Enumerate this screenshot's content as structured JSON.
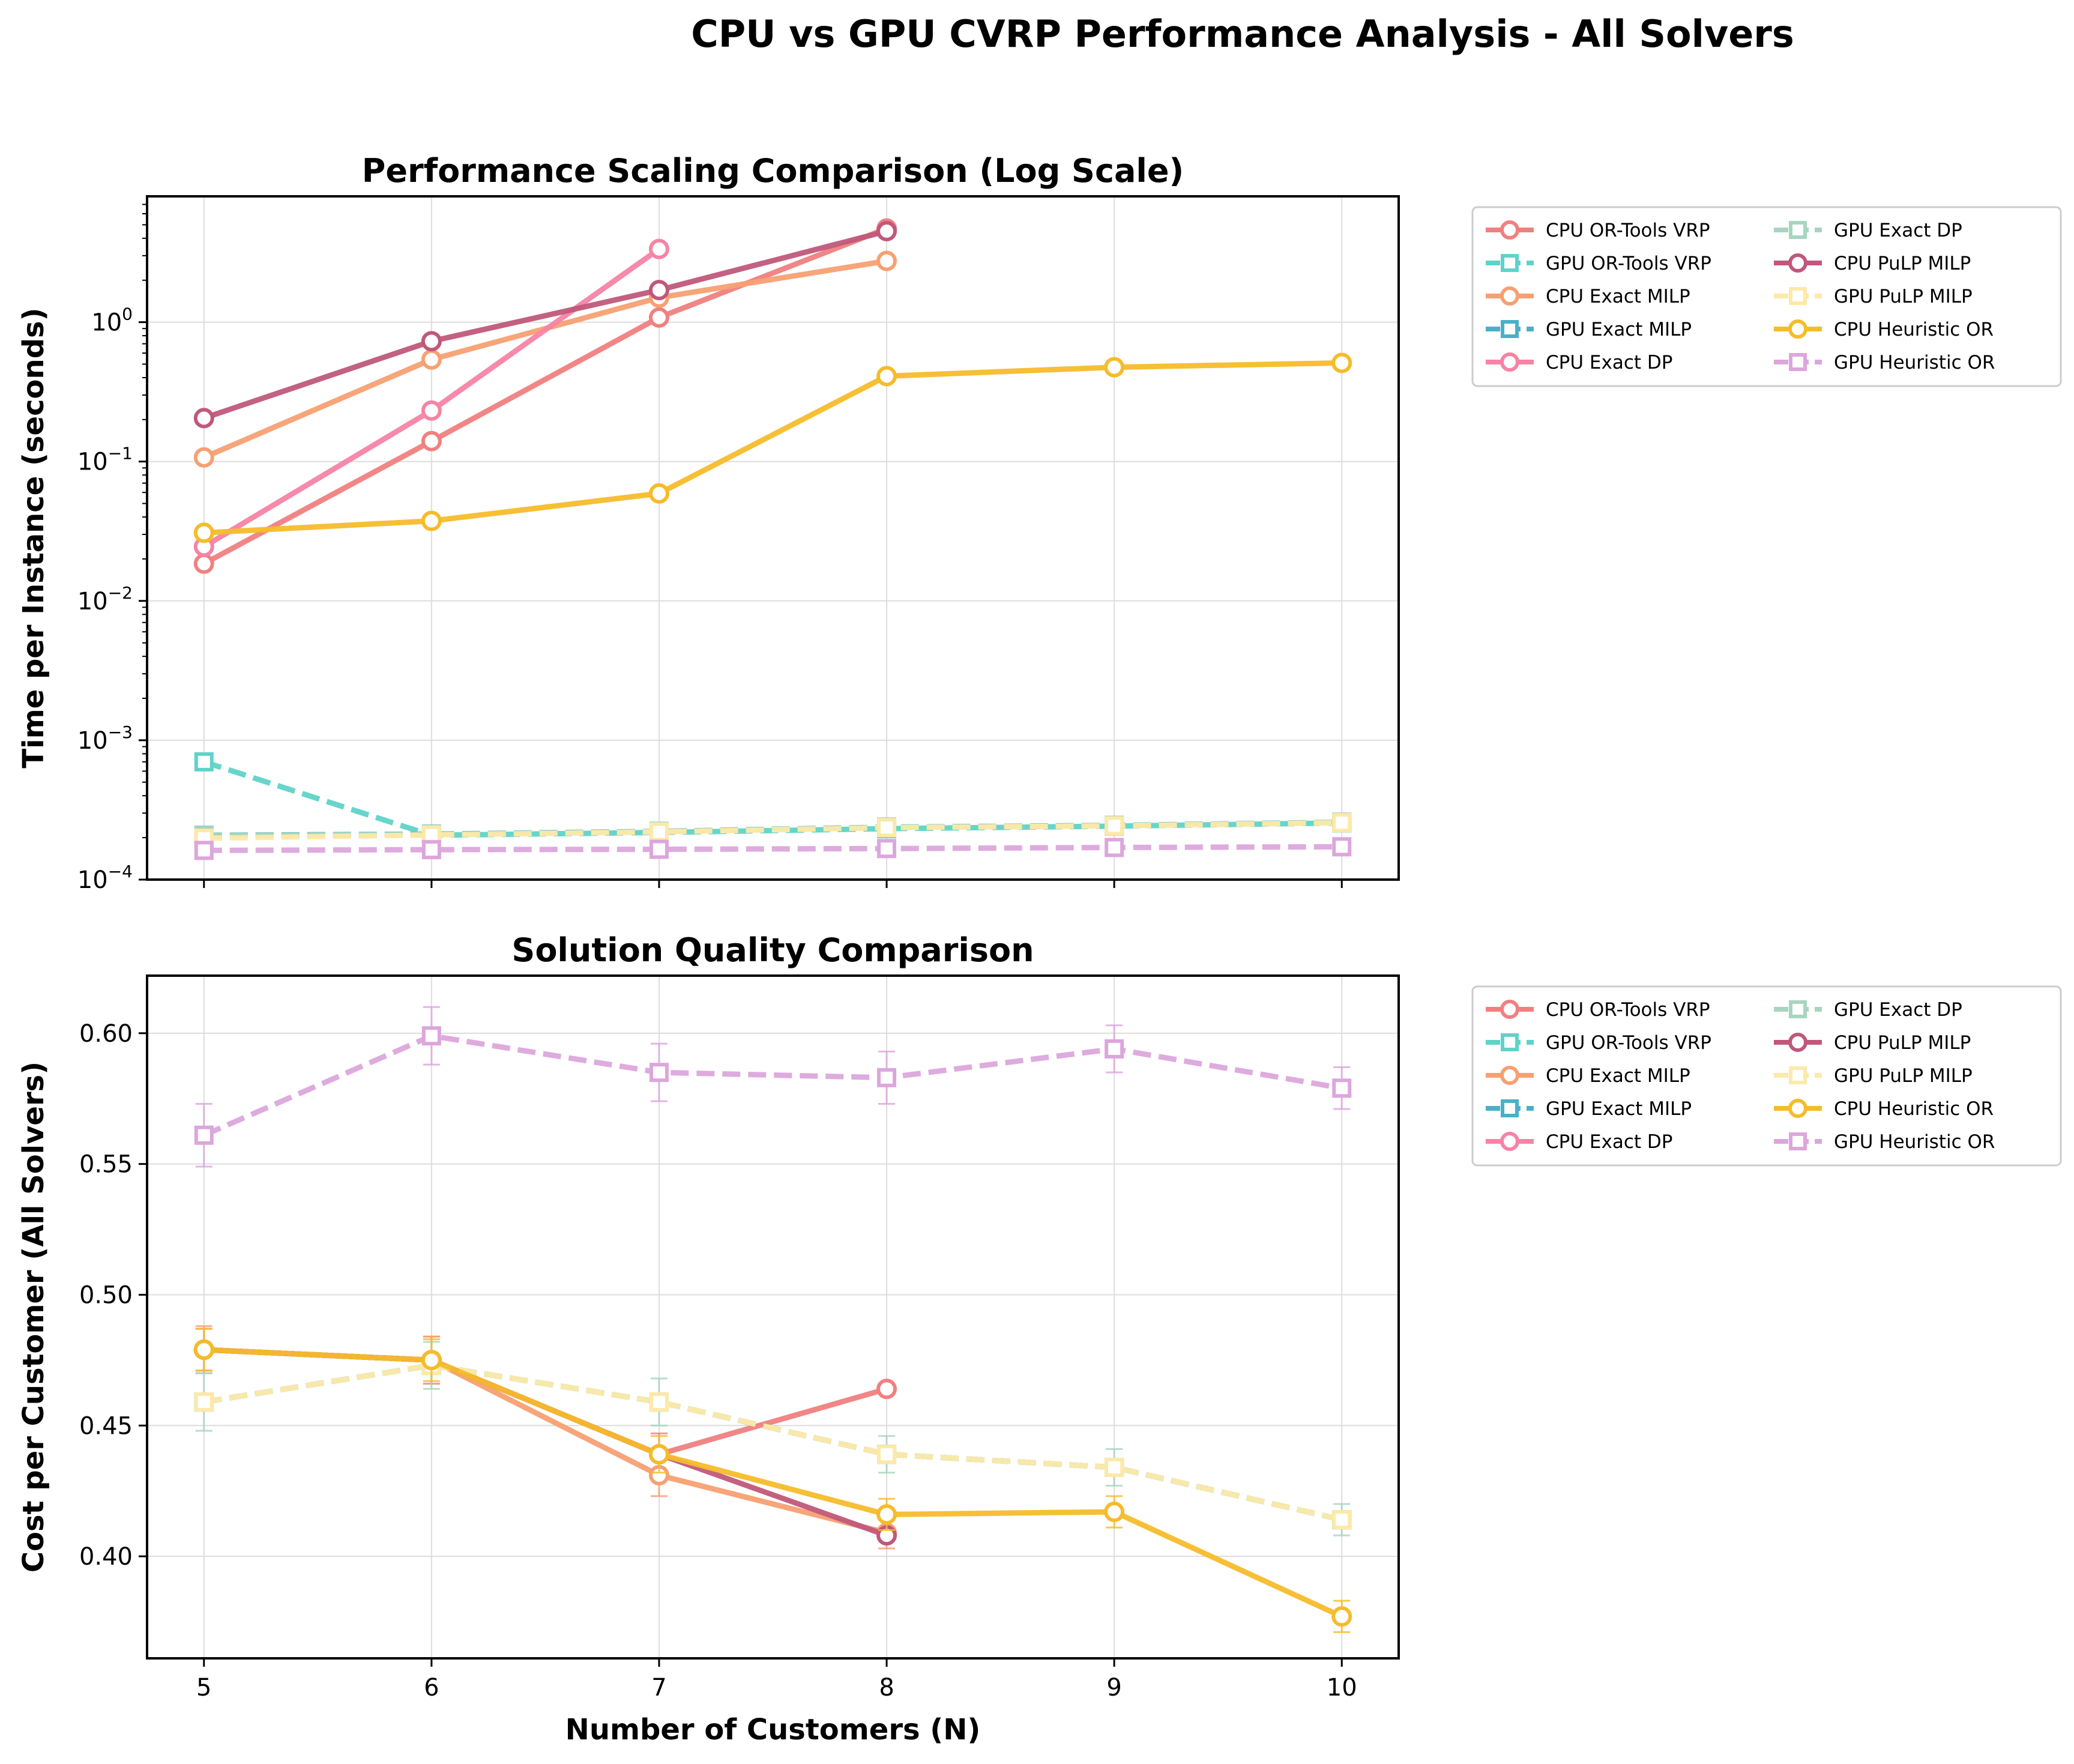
{
  "suptitle": "CPU vs GPU CVRP Performance Analysis - All Solvers",
  "x_label": "Number of Customers (N)",
  "x_ticks": [
    5,
    6,
    7,
    8,
    9,
    10
  ],
  "solvers": [
    {
      "name": "CPU OR-Tools VRP",
      "color": "#f08080",
      "style": "solid",
      "marker": "circle"
    },
    {
      "name": "GPU OR-Tools VRP",
      "color": "#5fd3c8",
      "style": "dashed",
      "marker": "square"
    },
    {
      "name": "CPU Exact MILP",
      "color": "#f7a072",
      "style": "solid",
      "marker": "circle"
    },
    {
      "name": "GPU Exact MILP",
      "color": "#4ab0c9",
      "style": "dashed",
      "marker": "square"
    },
    {
      "name": "CPU Exact DP",
      "color": "#f783a5",
      "style": "solid",
      "marker": "circle"
    },
    {
      "name": "GPU Exact DP",
      "color": "#a8d5bf",
      "style": "dashed",
      "marker": "square"
    },
    {
      "name": "CPU PuLP MILP",
      "color": "#c0587a",
      "style": "solid",
      "marker": "circle"
    },
    {
      "name": "GPU PuLP MILP",
      "color": "#fde9a8",
      "style": "dashed",
      "marker": "square"
    },
    {
      "name": "CPU Heuristic OR",
      "color": "#f5bc2a",
      "style": "solid",
      "marker": "circle"
    },
    {
      "name": "GPU Heuristic OR",
      "color": "#dca6dc",
      "style": "dashed",
      "marker": "square"
    }
  ],
  "chart_data": [
    {
      "type": "line",
      "title": "Performance Scaling Comparison (Log Scale)",
      "xlabel": "",
      "ylabel": "Time per Instance (seconds)",
      "yscale": "log",
      "ylim": [
        0.0001,
        8
      ],
      "xlim": [
        4.75,
        10.25
      ],
      "y_ticks": [
        {
          "value": 0.0001,
          "base": "10",
          "exp": "−4"
        },
        {
          "value": 0.001,
          "base": "10",
          "exp": "−3"
        },
        {
          "value": 0.01,
          "base": "10",
          "exp": "−2"
        },
        {
          "value": 0.1,
          "base": "10",
          "exp": "−1"
        },
        {
          "value": 1,
          "base": "10",
          "exp": "0"
        }
      ],
      "grid": true,
      "legend": "outside-right",
      "series": [
        {
          "name": "CPU OR-Tools VRP",
          "x": [
            5,
            6,
            7,
            8
          ],
          "y": [
            0.0185,
            0.14,
            1.08,
            4.7
          ]
        },
        {
          "name": "GPU OR-Tools VRP",
          "x": [
            5,
            6,
            7,
            8,
            9,
            10
          ],
          "y": [
            0.0007,
            0.000208,
            0.000218,
            0.000232,
            0.000242,
            0.000255
          ]
        },
        {
          "name": "CPU Exact MILP",
          "x": [
            5,
            6,
            7,
            8
          ],
          "y": [
            0.107,
            0.54,
            1.5,
            2.75
          ]
        },
        {
          "name": "GPU Exact MILP",
          "x": [
            5,
            6,
            7,
            8,
            9,
            10
          ],
          "y": [
            0.000208,
            0.000212,
            0.000222,
            0.000238,
            0.000245,
            0.000258
          ]
        },
        {
          "name": "CPU Exact DP",
          "x": [
            5,
            6,
            7
          ],
          "y": [
            0.0245,
            0.232,
            3.35
          ]
        },
        {
          "name": "GPU Exact DP",
          "x": [
            5,
            6,
            7,
            8,
            9,
            10
          ],
          "y": [
            0.000207,
            0.000211,
            0.000221,
            0.000237,
            0.000244,
            0.000257
          ]
        },
        {
          "name": "CPU PuLP MILP",
          "x": [
            5,
            6,
            7,
            8
          ],
          "y": [
            0.205,
            0.73,
            1.7,
            4.5
          ]
        },
        {
          "name": "GPU PuLP MILP",
          "x": [
            5,
            6,
            7,
            8,
            9,
            10
          ],
          "y": [
            0.000198,
            0.000209,
            0.00022,
            0.000236,
            0.000243,
            0.000256
          ]
        },
        {
          "name": "CPU Heuristic OR",
          "x": [
            5,
            6,
            7,
            8,
            9,
            10
          ],
          "y": [
            0.0308,
            0.0375,
            0.059,
            0.41,
            0.475,
            0.51
          ]
        },
        {
          "name": "GPU Heuristic OR",
          "x": [
            5,
            6,
            7,
            8,
            9,
            10
          ],
          "y": [
            0.000162,
            0.000164,
            0.000165,
            0.000167,
            0.00017,
            0.000172
          ]
        }
      ]
    },
    {
      "type": "line",
      "title": "Solution Quality Comparison",
      "xlabel": "Number of Customers (N)",
      "ylabel": "Cost per Customer (All Solvers)",
      "yscale": "linear",
      "ylim": [
        0.361,
        0.622
      ],
      "xlim": [
        4.75,
        10.25
      ],
      "y_ticks": [
        {
          "value": 0.4,
          "label": "0.40"
        },
        {
          "value": 0.45,
          "label": "0.45"
        },
        {
          "value": 0.5,
          "label": "0.50"
        },
        {
          "value": 0.55,
          "label": "0.55"
        },
        {
          "value": 0.6,
          "label": "0.60"
        }
      ],
      "grid": true,
      "legend": "outside-right",
      "series": [
        {
          "name": "CPU OR-Tools VRP",
          "x": [
            5,
            6,
            7,
            8
          ],
          "y": [
            0.479,
            0.475,
            0.439,
            0.464
          ],
          "err": [
            0.008,
            0.009,
            0.008,
            0.0
          ]
        },
        {
          "name": "GPU OR-Tools VRP",
          "x": [
            5,
            6,
            7,
            8,
            9,
            10
          ],
          "y": [
            0.459,
            0.473,
            0.459,
            0.439,
            0.434,
            0.414
          ],
          "err": [
            0.0,
            0.0,
            0.0,
            0.0,
            0.0,
            0.0
          ]
        },
        {
          "name": "CPU Exact MILP",
          "x": [
            5,
            6,
            7,
            8
          ],
          "y": [
            0.479,
            0.475,
            0.431,
            0.409
          ],
          "err": [
            0.009,
            0.009,
            0.008,
            0.006
          ]
        },
        {
          "name": "GPU Exact MILP",
          "x": [
            5,
            6,
            7,
            8,
            9,
            10
          ],
          "y": [
            0.459,
            0.473,
            0.459,
            0.439,
            0.434,
            0.414
          ],
          "err": [
            0.0,
            0.0,
            0.0,
            0.0,
            0.0,
            0.0
          ]
        },
        {
          "name": "CPU Exact DP",
          "x": [
            5,
            6,
            7
          ],
          "y": [
            0.479,
            0.475,
            0.439
          ],
          "err": [
            0.0,
            0.0,
            0.0
          ]
        },
        {
          "name": "GPU Exact DP",
          "x": [
            5,
            6,
            7,
            8,
            9,
            10
          ],
          "y": [
            0.459,
            0.473,
            0.459,
            0.439,
            0.434,
            0.414
          ],
          "err": [
            0.011,
            0.009,
            0.009,
            0.007,
            0.007,
            0.006
          ]
        },
        {
          "name": "CPU PuLP MILP",
          "x": [
            5,
            6,
            7,
            8
          ],
          "y": [
            0.479,
            0.475,
            0.439,
            0.408
          ],
          "err": [
            0.0,
            0.0,
            0.0,
            0.0
          ]
        },
        {
          "name": "GPU PuLP MILP",
          "x": [
            5,
            6,
            7,
            8,
            9,
            10
          ],
          "y": [
            0.459,
            0.473,
            0.459,
            0.439,
            0.434,
            0.414
          ],
          "err": [
            0.0,
            0.0,
            0.0,
            0.0,
            0.0,
            0.0
          ]
        },
        {
          "name": "CPU Heuristic OR",
          "x": [
            5,
            6,
            7,
            8,
            9,
            10
          ],
          "y": [
            0.479,
            0.475,
            0.439,
            0.416,
            0.417,
            0.377
          ],
          "err": [
            0.008,
            0.008,
            0.007,
            0.006,
            0.006,
            0.006
          ]
        },
        {
          "name": "GPU Heuristic OR",
          "x": [
            5,
            6,
            7,
            8,
            9,
            10
          ],
          "y": [
            0.561,
            0.599,
            0.585,
            0.583,
            0.594,
            0.579
          ],
          "err": [
            0.012,
            0.011,
            0.011,
            0.01,
            0.009,
            0.008
          ]
        }
      ]
    }
  ]
}
